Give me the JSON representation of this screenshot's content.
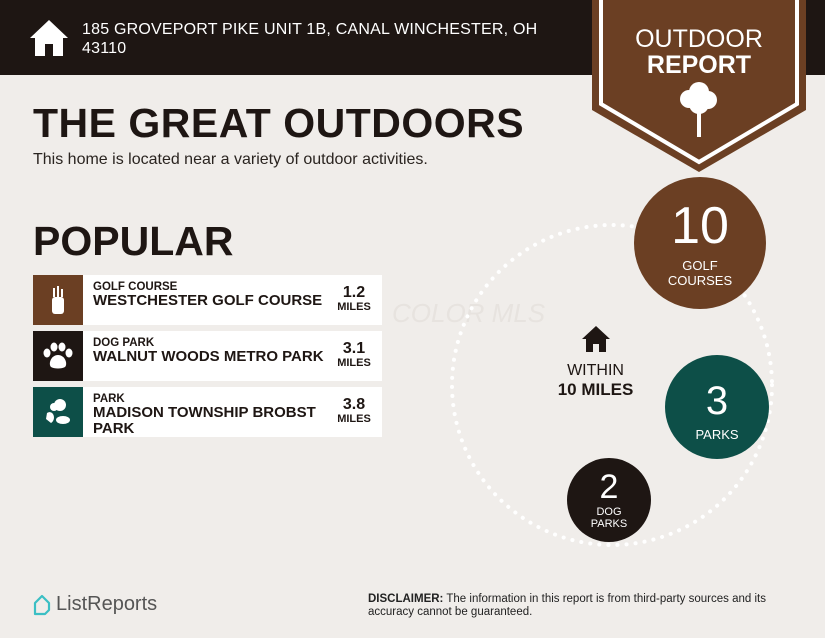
{
  "header": {
    "address": "185 GROVEPORT PIKE UNIT 1B, CANAL WINCHESTER, OH 43110",
    "icon": "home-icon"
  },
  "banner": {
    "line1": "OUTDOOR",
    "line2": "REPORT",
    "icon": "tree-icon",
    "color": "#6b3f23"
  },
  "title": "THE GREAT OUTDOORS",
  "subtitle": "This home is located near a variety of outdoor activities.",
  "popular": {
    "heading": "POPULAR",
    "items": [
      {
        "category": "GOLF COURSE",
        "name": "WESTCHESTER GOLF COURSE",
        "distance": "1.2",
        "unit": "MILES",
        "icon": "golf-bag-icon",
        "color": "#6b3f23"
      },
      {
        "category": "DOG PARK",
        "name": "WALNUT WOODS METRO PARK",
        "distance": "3.1",
        "unit": "MILES",
        "icon": "paw-icon",
        "color": "#1e1613"
      },
      {
        "category": "PARK",
        "name": "MADISON TOWNSHIP BROBST PARK",
        "distance": "3.8",
        "unit": "MILES",
        "icon": "park-icon",
        "color": "#0d4f48"
      }
    ]
  },
  "watermark": "COLOR MLS",
  "within": {
    "line1": "WITHIN",
    "line2": "10 MILES"
  },
  "counts": [
    {
      "value": "10",
      "label1": "GOLF",
      "label2": "COURSES",
      "color": "#6b3f23"
    },
    {
      "value": "3",
      "label1": "PARKS",
      "label2": "",
      "color": "#0d4f48"
    },
    {
      "value": "2",
      "label1": "DOG",
      "label2": "PARKS",
      "color": "#1e1613"
    }
  ],
  "footer": {
    "logo": "ListReports",
    "disclaimer_label": "DISCLAIMER:",
    "disclaimer": " The information in this report is from third-party sources and its accuracy cannot be guaranteed."
  }
}
